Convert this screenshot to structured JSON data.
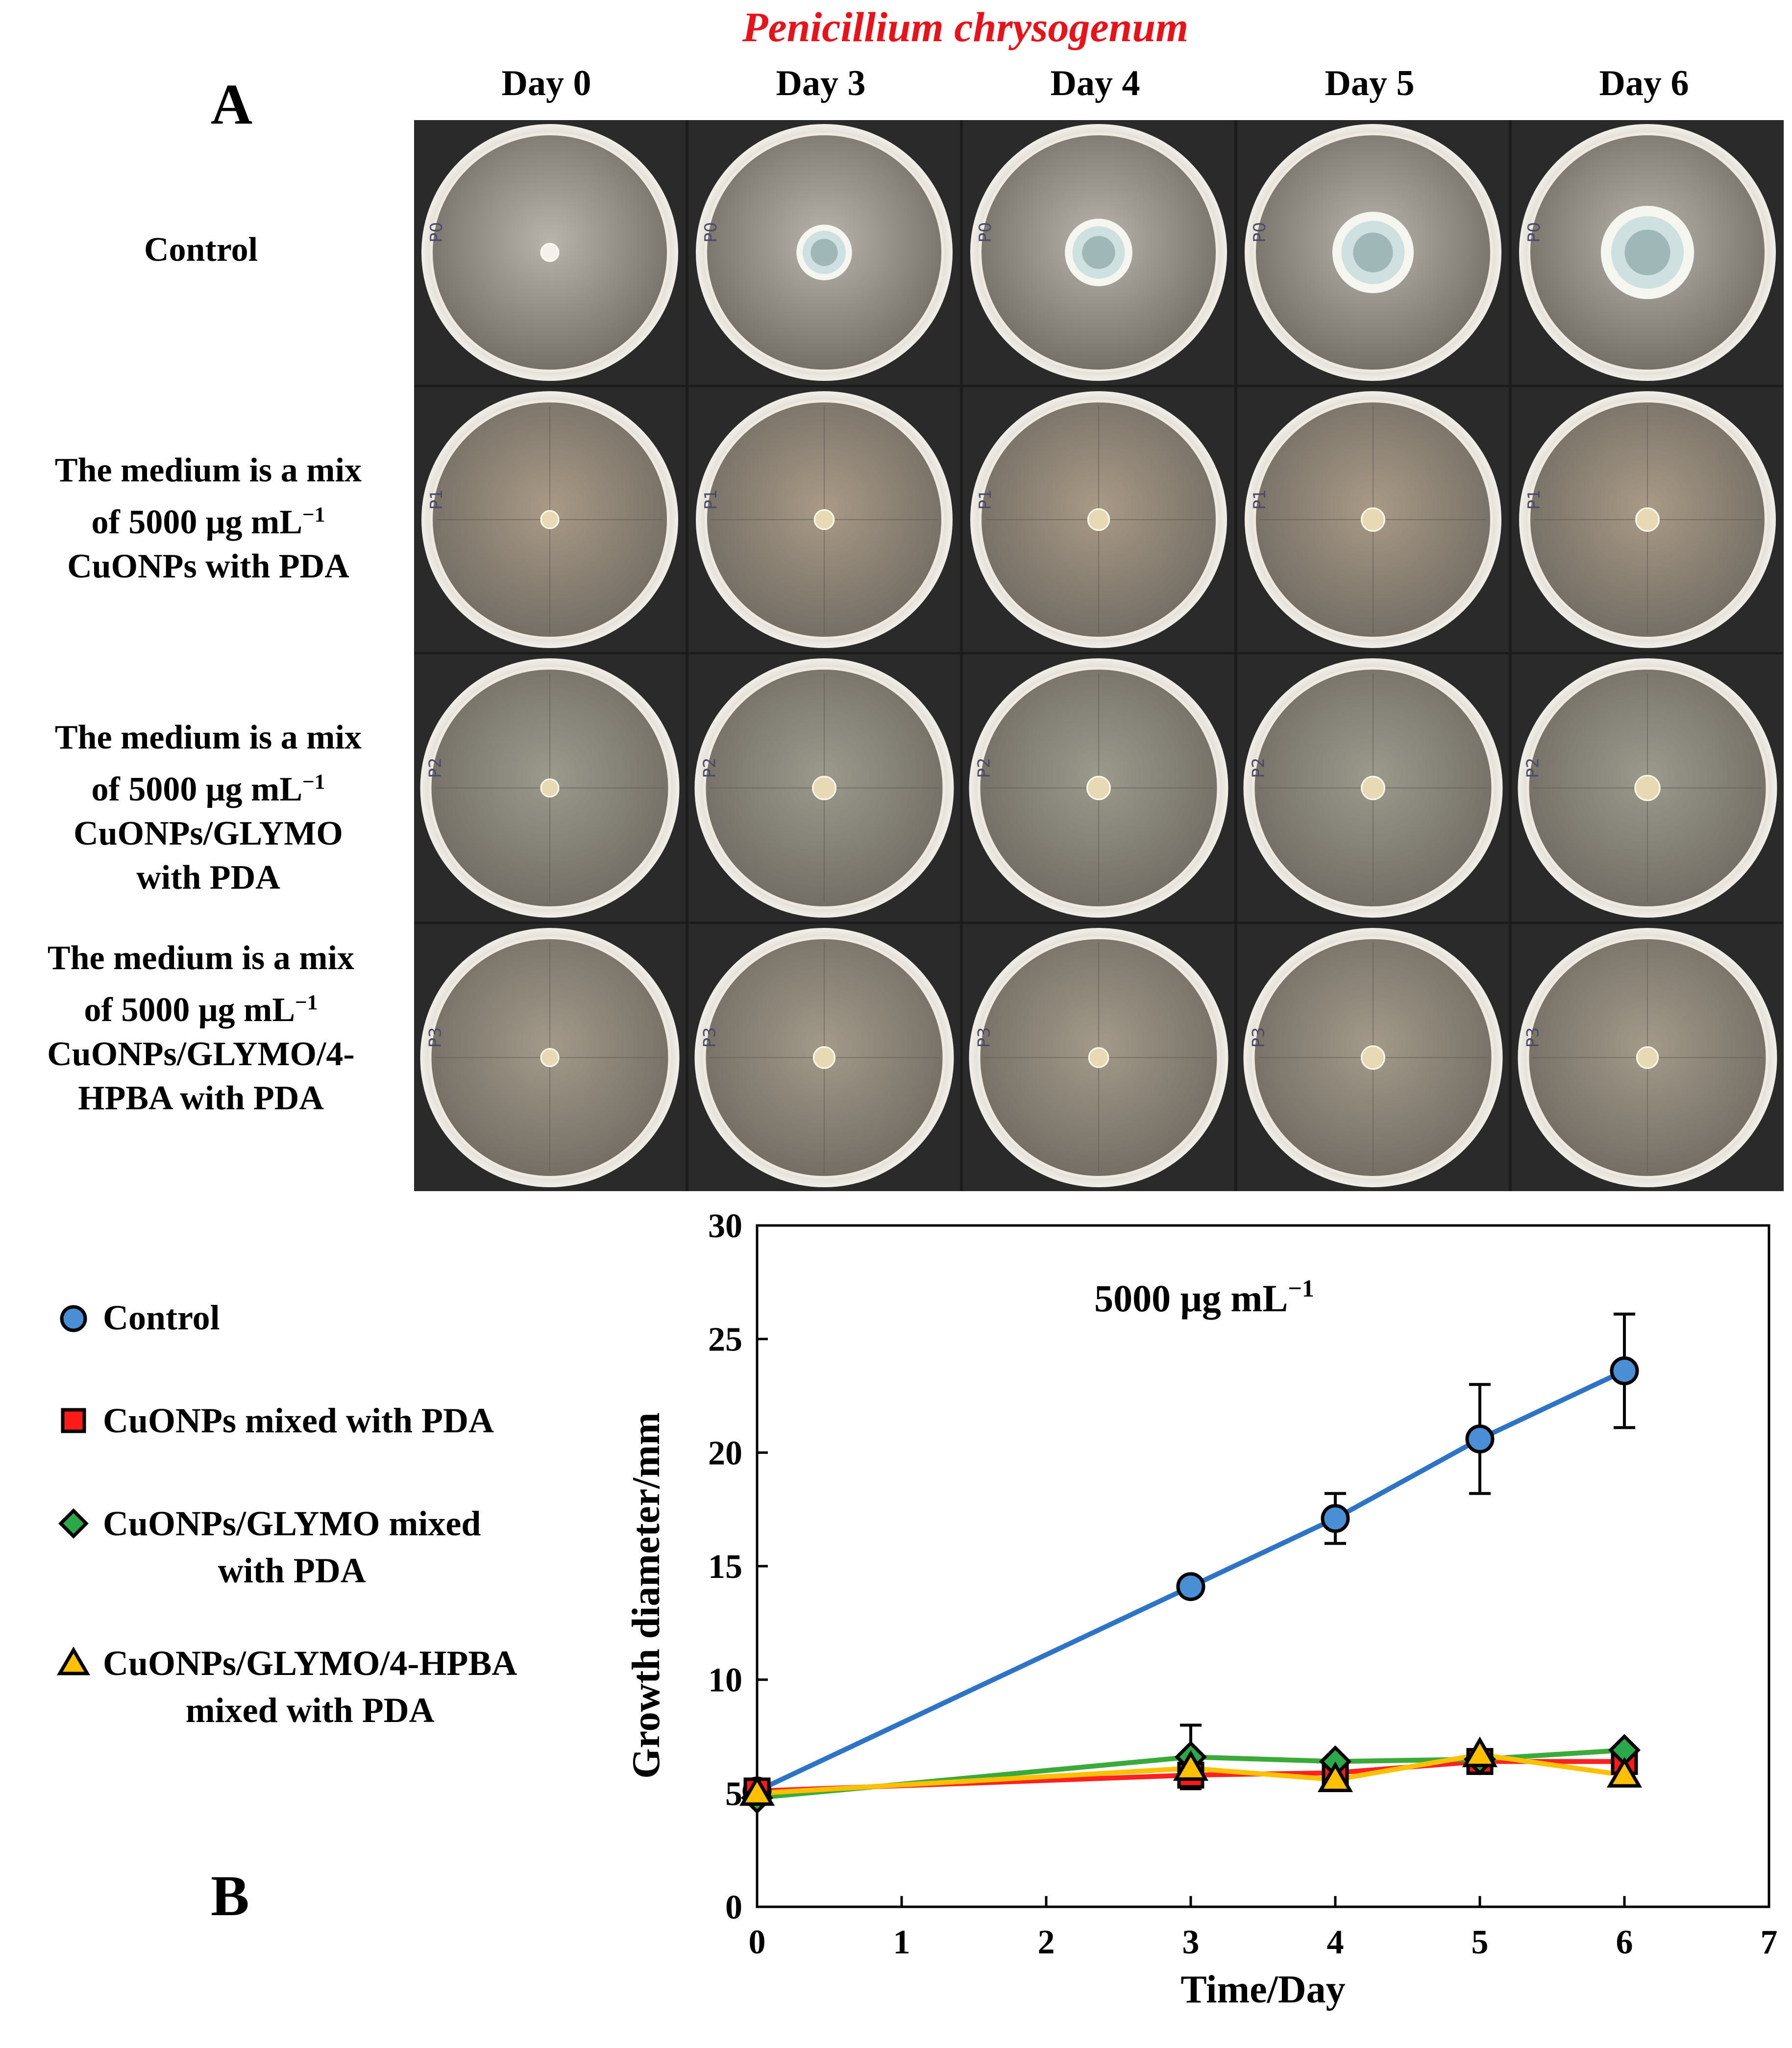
{
  "figure": {
    "species_title": "Penicillium chrysogenum",
    "panel_a_label": "A",
    "panel_b_label": "B",
    "days": [
      "Day 0",
      "Day 3",
      "Day 4",
      "Day 5",
      "Day 6"
    ],
    "rows": [
      {
        "lines": [
          "Control"
        ]
      },
      {
        "lines": [
          "The medium is a mix",
          "of 5000 μg mL",
          "CuONPs with PDA"
        ]
      },
      {
        "lines": [
          "The medium is a mix",
          "of 5000 μg mL",
          "CuONPs/GLYMO",
          "with PDA"
        ]
      },
      {
        "lines": [
          "The medium is a mix",
          "of 5000 μg mL",
          "CuONPs/GLYMO/4-",
          "HPBA with PDA"
        ]
      }
    ],
    "superscript": "−1",
    "plate_marks": [
      "P0",
      "P1",
      "P2",
      "P3"
    ],
    "colony_diameters_mm": [
      [
        5,
        14,
        17,
        20.5,
        23.5
      ],
      [
        5,
        5.5,
        6,
        6.5,
        6.5
      ],
      [
        5,
        6.5,
        6.5,
        6.5,
        7
      ],
      [
        5,
        6,
        5.5,
        6.5,
        6
      ]
    ],
    "plate_tints": [
      "#b9b4ab",
      "#a99a86",
      "#9b9a8c",
      "#a39a89"
    ]
  },
  "legend": {
    "items": [
      {
        "label_lines": [
          "Control"
        ],
        "marker": "circle",
        "color": "#4a8fd6"
      },
      {
        "label_lines": [
          "CuONPs mixed with PDA"
        ],
        "marker": "square",
        "color": "#ff1a1a"
      },
      {
        "label_lines": [
          "CuONPs/GLYMO mixed",
          "with PDA"
        ],
        "marker": "diamond",
        "color": "#2aa84a"
      },
      {
        "label_lines": [
          "CuONPs/GLYMO/4-HPBA",
          "mixed with PDA"
        ],
        "marker": "triangle",
        "color": "#ffc000"
      }
    ]
  },
  "chart_data": {
    "type": "line",
    "title": "5000 μg mL−1",
    "xlabel": "Time/Day",
    "ylabel": "Growth diameter/mm",
    "xlim": [
      0,
      7
    ],
    "ylim": [
      0,
      30
    ],
    "xticks": [
      0,
      1,
      2,
      3,
      4,
      5,
      6,
      7
    ],
    "yticks": [
      0,
      5,
      10,
      15,
      20,
      25,
      30
    ],
    "grid": false,
    "legend_position": "left",
    "x": [
      0,
      3,
      4,
      5,
      6
    ],
    "series": [
      {
        "name": "Control",
        "marker": "circle",
        "color": "#4a8fd6",
        "line_color": "#2e74c6",
        "values": [
          5.1,
          14.1,
          17.1,
          20.6,
          23.6
        ],
        "errors": [
          0,
          0,
          1.1,
          2.4,
          2.5
        ]
      },
      {
        "name": "CuONPs mixed with PDA",
        "marker": "square",
        "color": "#ff1a1a",
        "line_color": "#ff2020",
        "values": [
          5.1,
          5.8,
          5.9,
          6.4,
          6.4
        ],
        "errors": [
          0,
          0,
          0,
          0,
          0
        ]
      },
      {
        "name": "CuONPs/GLYMO mixed with PDA",
        "marker": "diamond",
        "color": "#2aa84a",
        "line_color": "#3aaa3a",
        "values": [
          4.8,
          6.6,
          6.4,
          6.5,
          6.9
        ],
        "errors": [
          0,
          1.4,
          0,
          0,
          0
        ]
      },
      {
        "name": "CuONPs/GLYMO/4-HPBA mixed with PDA",
        "marker": "triangle",
        "color": "#ffc000",
        "line_color": "#ffc000",
        "values": [
          5.0,
          6.1,
          5.6,
          6.7,
          5.8
        ],
        "errors": [
          0,
          0,
          0,
          0,
          0
        ]
      }
    ]
  }
}
